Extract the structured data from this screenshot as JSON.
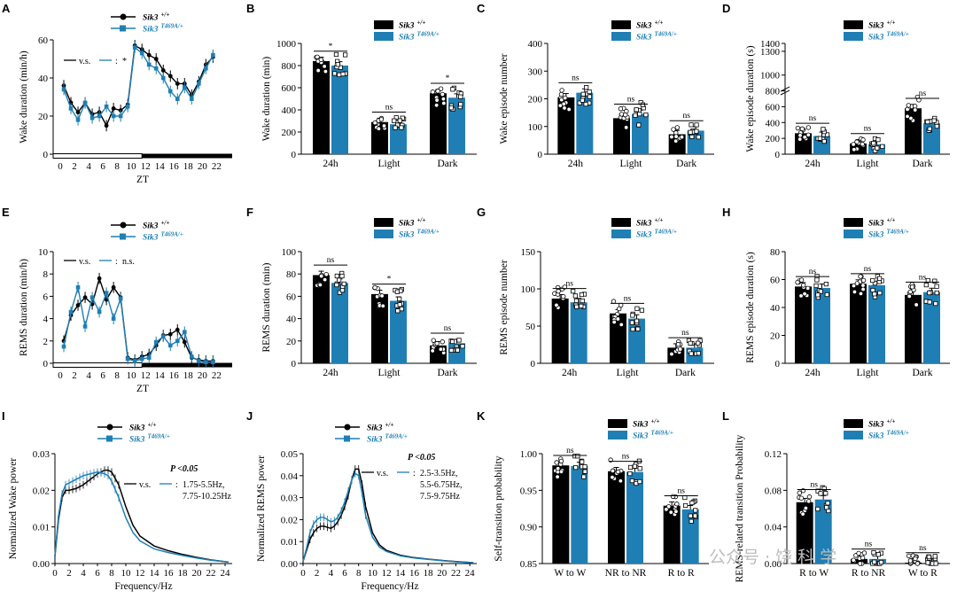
{
  "colors": {
    "wt": "#000000",
    "mut": "#1f7fb4",
    "pt": "#ffffff"
  },
  "legend": {
    "wt_gene": "Sik3",
    "wt_sup": "+/+",
    "mut_gene": "Sik3",
    "mut_sup": "T469A/+"
  },
  "watermark": "公众号 · 饶 科 学",
  "chart_data": [
    {
      "panel": "A",
      "type": "line",
      "xlabel": "ZT",
      "ylabel": "Wake duration (min/h)",
      "ylim": [
        0,
        60
      ],
      "yticks": [
        0,
        20,
        40,
        60
      ],
      "xticks": [
        "0",
        "2",
        "4",
        "6",
        "8",
        "10",
        "12",
        "14",
        "16",
        "18",
        "20",
        "22"
      ],
      "annotation": {
        "left": "v.s.",
        "colon": ":",
        "right": "*"
      },
      "series": [
        {
          "name": "Sik3 +/+",
          "values": [
            36,
            27,
            22,
            27,
            21,
            22,
            15,
            24,
            23,
            26,
            57,
            55,
            52,
            50,
            44,
            41,
            37,
            37,
            31,
            38,
            47,
            51
          ]
        },
        {
          "name": "Sik3 T469A/+",
          "values": [
            34,
            24,
            18,
            27,
            19,
            20,
            25,
            20,
            20,
            25,
            56,
            53,
            47,
            45,
            40,
            33,
            29,
            35,
            29,
            37,
            45,
            52
          ]
        }
      ]
    },
    {
      "panel": "B",
      "type": "bar",
      "ylabel": "Wake duration (min)",
      "ylim": [
        0,
        1000
      ],
      "yticks": [
        0,
        200,
        400,
        600,
        800,
        1000
      ],
      "categories": [
        "24h",
        "Light",
        "Dark"
      ],
      "sig": [
        "*",
        "ns",
        "*"
      ],
      "series": [
        {
          "name": "Sik3 +/+",
          "values": [
            840,
            290,
            550
          ]
        },
        {
          "name": "Sik3 T469A/+",
          "values": [
            800,
            270,
            510
          ]
        }
      ]
    },
    {
      "panel": "C",
      "type": "bar",
      "ylabel": "Wake episode number",
      "ylim": [
        0,
        400
      ],
      "yticks": [
        0,
        100,
        200,
        300,
        400
      ],
      "categories": [
        "24h",
        "Light",
        "Dark"
      ],
      "sig": [
        "ns",
        "ns",
        "ns"
      ],
      "series": [
        {
          "name": "Sik3 +/+",
          "values": [
            205,
            130,
            72
          ]
        },
        {
          "name": "Sik3 T469A/+",
          "values": [
            222,
            145,
            85
          ]
        }
      ]
    },
    {
      "panel": "D",
      "type": "bar",
      "ylabel": "Wake episode duration (s)",
      "ylim": [
        0,
        1400
      ],
      "yticks": [
        "0",
        "200",
        "400",
        "600",
        "800",
        "1000",
        "1300",
        "1400"
      ],
      "categories": [
        "24h",
        "Light",
        "Dark"
      ],
      "sig": [
        "ns",
        "ns",
        "ns"
      ],
      "series": [
        {
          "name": "Sik3 +/+",
          "values": [
            265,
            135,
            580
          ]
        },
        {
          "name": "Sik3 T469A/+",
          "values": [
            230,
            125,
            390
          ]
        }
      ]
    },
    {
      "panel": "E",
      "type": "line",
      "xlabel": "ZT",
      "ylabel": "REMS duration (min/h)",
      "ylim": [
        0,
        10
      ],
      "yticks": [
        0,
        2,
        4,
        6,
        8,
        10
      ],
      "xticks": [
        "0",
        "2",
        "4",
        "6",
        "8",
        "10",
        "12",
        "14",
        "16",
        "18",
        "20",
        "22"
      ],
      "annotation": {
        "left": "v.s.",
        "colon": ":",
        "right": "n.s."
      },
      "series": [
        {
          "name": "Sik3 +/+",
          "values": [
            2.0,
            4.3,
            5.2,
            5.9,
            5.3,
            7.6,
            5.7,
            6.8,
            5.9,
            0.5,
            0.3,
            0.6,
            0.8,
            1.6,
            2.5,
            2.6,
            3.0,
            1.9,
            0.5,
            0.3,
            0.2,
            0.2
          ]
        },
        {
          "name": "Sik3 T469A/+",
          "values": [
            1.5,
            4.6,
            6.8,
            3.3,
            5.9,
            4.6,
            6.3,
            4.0,
            5.8,
            0.4,
            0.2,
            0.4,
            0.5,
            1.9,
            2.4,
            1.6,
            2.0,
            2.8,
            0.6,
            0.2,
            0.1,
            0.1
          ]
        }
      ]
    },
    {
      "panel": "F",
      "type": "bar",
      "ylabel": "REMS duration (min)",
      "ylim": [
        0,
        100
      ],
      "yticks": [
        0,
        20,
        40,
        60,
        80,
        100
      ],
      "categories": [
        "24h",
        "Light",
        "Dark"
      ],
      "sig": [
        "ns",
        "*",
        "ns"
      ],
      "series": [
        {
          "name": "Sik3 +/+",
          "values": [
            79,
            62,
            16
          ]
        },
        {
          "name": "Sik3 T469A/+",
          "values": [
            72,
            56,
            18
          ]
        }
      ]
    },
    {
      "panel": "G",
      "type": "bar",
      "ylabel": "REMS episode number",
      "ylim": [
        0,
        150
      ],
      "yticks": [
        0,
        50,
        100,
        150
      ],
      "categories": [
        "24h",
        "Light",
        "Dark"
      ],
      "sig": [
        "ns",
        "ns",
        "ns"
      ],
      "series": [
        {
          "name": "Sik3 +/+",
          "values": [
            87,
            67,
            21
          ]
        },
        {
          "name": "Sik3 T469A/+",
          "values": [
            82,
            60,
            21
          ]
        }
      ]
    },
    {
      "panel": "H",
      "type": "bar",
      "ylabel": "REMS episode duration (s)",
      "ylim": [
        0,
        80
      ],
      "yticks": [
        0,
        20,
        40,
        60,
        80
      ],
      "categories": [
        "24h",
        "Light",
        "Dark"
      ],
      "sig": [
        "ns",
        "ns",
        "ns"
      ],
      "series": [
        {
          "name": "Sik3 +/+",
          "values": [
            55,
            57,
            49
          ]
        },
        {
          "name": "Sik3 T469A/+",
          "values": [
            54,
            56,
            51
          ]
        }
      ]
    },
    {
      "panel": "I",
      "type": "line",
      "xlabel": "Frequency/Hz",
      "ylabel": "Normalized Wake power",
      "ylim": [
        0,
        0.03
      ],
      "yticks": [
        "0.00",
        "0.01",
        "0.02",
        "0.03"
      ],
      "xticks": [
        "0",
        "2",
        "4",
        "6",
        "8",
        "10",
        "12",
        "14",
        "16",
        "18",
        "20",
        "22",
        "24"
      ],
      "annotation": {
        "p": "P <0.05",
        "left": "v.s.",
        "colon": ":",
        "lines": [
          "1.75-5.5Hz,",
          "7.75-10.25Hz"
        ]
      },
      "series": [
        {
          "name": "Sik3 +/+",
          "x": [
            0,
            0.5,
            1,
            1.5,
            2,
            3,
            4,
            5,
            6,
            7,
            7.5,
            8,
            9,
            10,
            11,
            12,
            14,
            16,
            18,
            20,
            22,
            24.5
          ],
          "values": [
            0.002,
            0.012,
            0.018,
            0.02,
            0.02,
            0.0205,
            0.0215,
            0.023,
            0.0245,
            0.0255,
            0.0255,
            0.025,
            0.0215,
            0.0155,
            0.0105,
            0.0075,
            0.0048,
            0.0035,
            0.0025,
            0.0017,
            0.001,
            0.0004
          ]
        },
        {
          "name": "Sik3 T469A/+",
          "x": [
            0,
            0.5,
            1,
            1.5,
            2,
            3,
            4,
            5,
            6,
            7,
            7.5,
            8,
            9,
            10,
            11,
            12,
            14,
            16,
            18,
            20,
            22,
            24.5
          ],
          "values": [
            0.002,
            0.013,
            0.019,
            0.0215,
            0.022,
            0.023,
            0.024,
            0.0245,
            0.025,
            0.0245,
            0.024,
            0.0225,
            0.018,
            0.0125,
            0.0085,
            0.0062,
            0.004,
            0.003,
            0.0022,
            0.0015,
            0.0009,
            0.0004
          ]
        }
      ]
    },
    {
      "panel": "J",
      "type": "line",
      "xlabel": "Frequency/Hz",
      "ylabel": "Normalized REMS power",
      "ylim": [
        0,
        0.05
      ],
      "yticks": [
        "0.00",
        "0.01",
        "0.02",
        "0.03",
        "0.04",
        "0.05"
      ],
      "xticks": [
        "0",
        "2",
        "4",
        "6",
        "8",
        "10",
        "12",
        "14",
        "16",
        "18",
        "20",
        "22",
        "24"
      ],
      "annotation": {
        "p": "P <0.05",
        "left": "v.s.",
        "colon": ":",
        "lines": [
          "2.5-3.5Hz,",
          "5.5-6.75Hz,",
          "7.5-9.75Hz"
        ]
      },
      "series": [
        {
          "name": "Sik3 +/+",
          "x": [
            0,
            0.5,
            1,
            1.5,
            2,
            2.5,
            3,
            3.5,
            4,
            4.5,
            5,
            5.5,
            6,
            6.5,
            7,
            7.5,
            8,
            8.5,
            9,
            10,
            11,
            12,
            14,
            16,
            18,
            20,
            22,
            24.5
          ],
          "values": [
            0.001,
            0.006,
            0.011,
            0.014,
            0.016,
            0.017,
            0.017,
            0.0165,
            0.016,
            0.017,
            0.019,
            0.022,
            0.026,
            0.031,
            0.038,
            0.043,
            0.043,
            0.036,
            0.026,
            0.014,
            0.0085,
            0.006,
            0.0038,
            0.0027,
            0.002,
            0.0014,
            0.0009,
            0.0004
          ]
        },
        {
          "name": "Sik3 T469A/+",
          "x": [
            0,
            0.5,
            1,
            1.5,
            2,
            2.5,
            3,
            3.5,
            4,
            4.5,
            5,
            5.5,
            6,
            6.5,
            7,
            7.5,
            8,
            8.5,
            9,
            10,
            11,
            12,
            14,
            16,
            18,
            20,
            22,
            24.5
          ],
          "values": [
            0.001,
            0.007,
            0.014,
            0.018,
            0.02,
            0.021,
            0.021,
            0.02,
            0.019,
            0.0195,
            0.021,
            0.024,
            0.028,
            0.033,
            0.038,
            0.041,
            0.04,
            0.032,
            0.022,
            0.012,
            0.0075,
            0.0055,
            0.0035,
            0.0025,
            0.0019,
            0.0013,
            0.0008,
            0.0004
          ]
        }
      ]
    },
    {
      "panel": "K",
      "type": "bar",
      "ylabel": "Self-transition probability",
      "ylim": [
        0.85,
        1.0
      ],
      "yticks": [
        "0.85",
        "0.90",
        "0.95",
        "1.00"
      ],
      "categories": [
        "W to W",
        "NR to NR",
        "R to R"
      ],
      "sig": [
        "ns",
        "ns",
        "ns"
      ],
      "series": [
        {
          "name": "Sik3 +/+",
          "values": [
            0.984,
            0.976,
            0.929
          ]
        },
        {
          "name": "Sik3 T469A/+",
          "values": [
            0.983,
            0.975,
            0.924
          ]
        }
      ]
    },
    {
      "panel": "L",
      "type": "bar",
      "ylabel": "REMS-related transition Probability",
      "ylim": [
        0,
        0.12
      ],
      "yticks": [
        "0.00",
        "0.04",
        "0.08",
        "0.12"
      ],
      "categories": [
        "R to W",
        "R to NR",
        "W to R"
      ],
      "sig": [
        "ns",
        "ns",
        "ns"
      ],
      "series": [
        {
          "name": "Sik3 +/+",
          "values": [
            0.067,
            0.005,
            0.001
          ]
        },
        {
          "name": "Sik3 T469A/+",
          "values": [
            0.07,
            0.005,
            0.001
          ]
        }
      ]
    }
  ]
}
